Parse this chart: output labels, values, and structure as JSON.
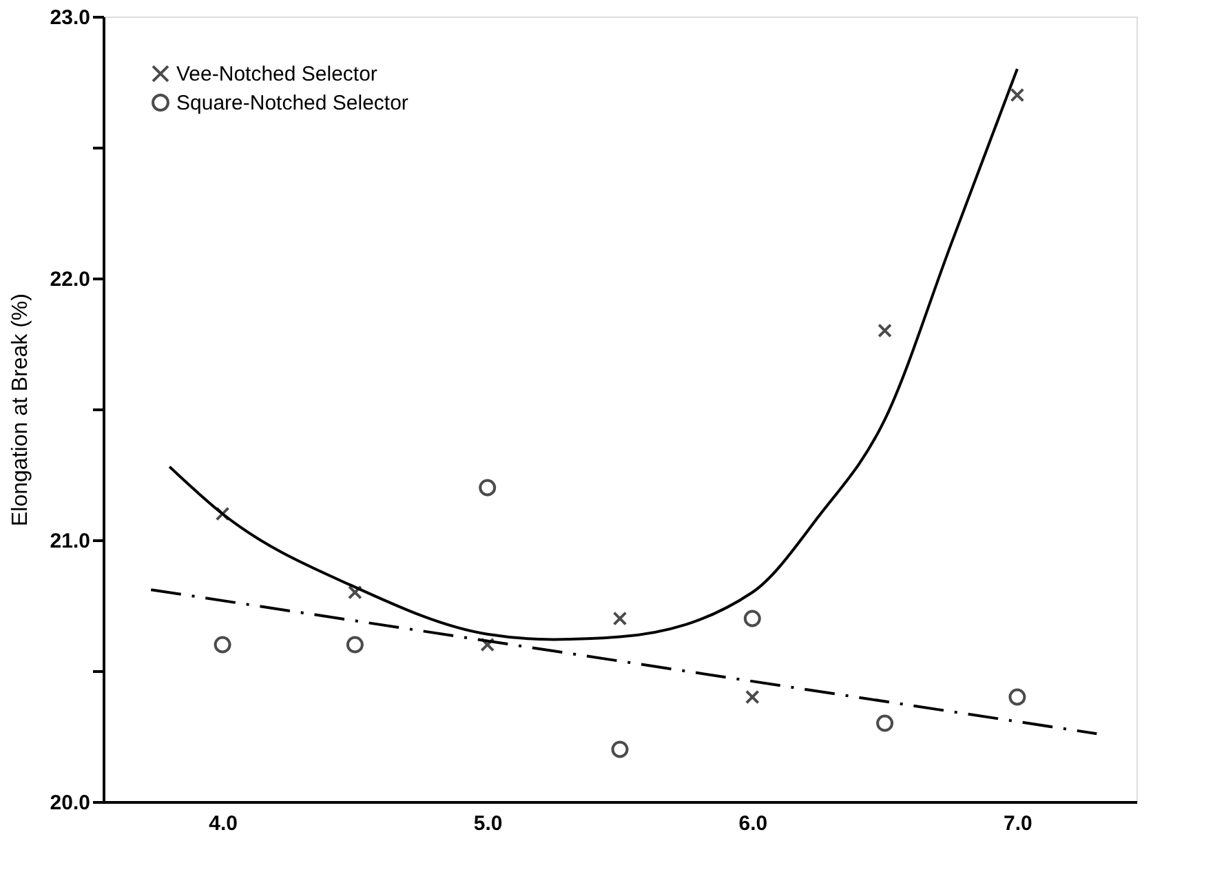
{
  "chart_data": {
    "type": "scatter",
    "ylabel": "Elongation at Break (%)",
    "xlim": [
      3.55,
      7.45
    ],
    "ylim": [
      20.0,
      23.0
    ],
    "xticks": [
      {
        "value": 4,
        "label": "4.0"
      },
      {
        "value": 5,
        "label": "5.0"
      },
      {
        "value": 6,
        "label": "6.0"
      },
      {
        "value": 7,
        "label": "7.0"
      }
    ],
    "yticks": [
      {
        "value": 20,
        "label": "20.0"
      },
      {
        "value": 20.5,
        "label": null
      },
      {
        "value": 21,
        "label": "21.0"
      },
      {
        "value": 21.5,
        "label": null
      },
      {
        "value": 22,
        "label": "22.0"
      },
      {
        "value": 22.5,
        "label": null
      },
      {
        "value": 23,
        "label": "23.0"
      }
    ],
    "grid": false,
    "legend": "top left",
    "series": [
      {
        "name": "Vee-Notched Selector",
        "marker": "cross",
        "color": "#000000",
        "x": [
          4.0,
          4.5,
          5.0,
          5.5,
          6.0,
          6.5,
          7.0
        ],
        "values": [
          21.1,
          20.8,
          20.6,
          20.7,
          20.4,
          21.8,
          22.7
        ]
      },
      {
        "type": "line",
        "line_style": "solid",
        "marker": "none",
        "color": "#000000",
        "x": [
          3.8,
          4.0,
          4.5,
          5.0,
          5.25,
          5.5,
          6.0,
          6.25,
          6.5,
          6.75,
          7.0
        ],
        "values": [
          21.28,
          21.1,
          20.82,
          20.64,
          20.62,
          20.63,
          20.8,
          21.09,
          21.46,
          22.13,
          22.8
        ]
      },
      {
        "name": "Square-Notched Selector",
        "marker": "circle",
        "color": "#000000",
        "x": [
          4.0,
          4.5,
          5.0,
          5.5,
          6.0,
          6.5,
          7.0
        ],
        "values": [
          20.6,
          20.6,
          21.2,
          20.2,
          20.7,
          20.3,
          20.4
        ]
      },
      {
        "type": "line",
        "line_style": "dashed",
        "marker": "none",
        "color": "#000000",
        "x": [
          3.73,
          7.3
        ],
        "values": [
          20.81,
          20.26
        ]
      }
    ]
  }
}
